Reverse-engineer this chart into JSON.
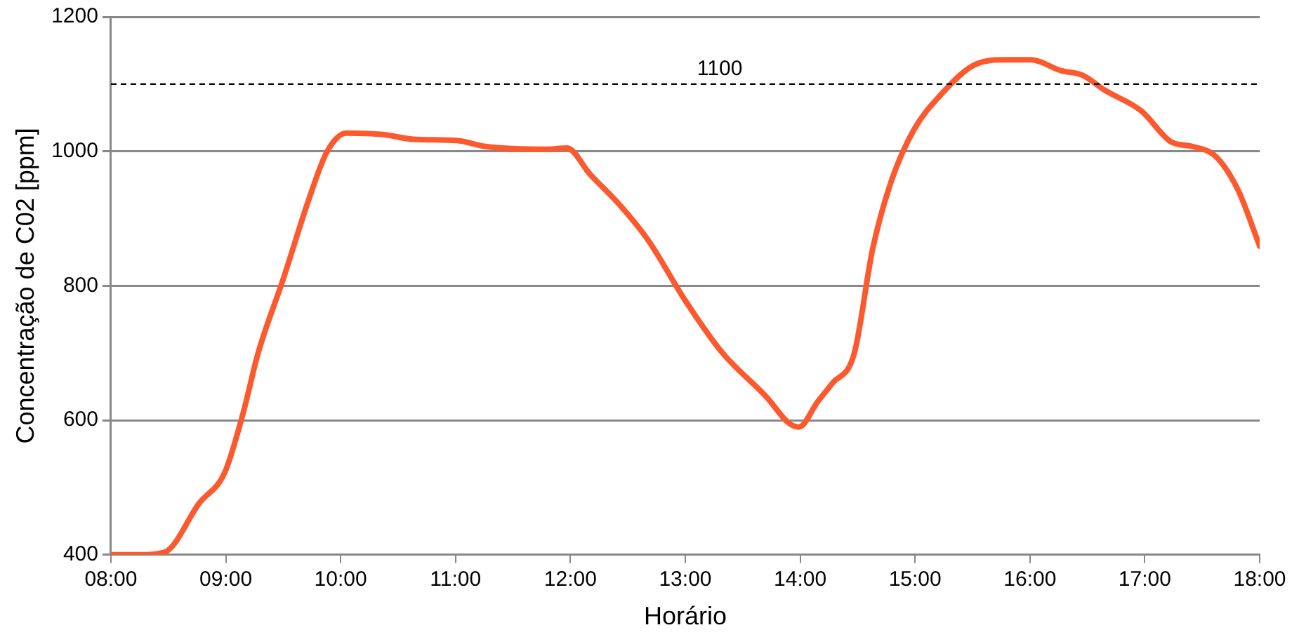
{
  "chart_data": {
    "type": "line",
    "xlabel": "Horário",
    "ylabel": "Concentração de C02 [ppm]",
    "x": [
      8.0,
      8.26,
      8.47,
      8.77,
      8.99,
      9.15,
      9.28,
      9.5,
      9.73,
      9.88,
      10.05,
      10.37,
      10.63,
      11.01,
      11.27,
      11.78,
      11.97,
      12.17,
      12.42,
      12.68,
      13.0,
      13.32,
      13.71,
      13.9,
      13.99,
      14.15,
      14.28,
      14.47,
      14.63,
      14.79,
      14.99,
      15.24,
      15.5,
      15.76,
      16.01,
      16.27,
      16.46,
      16.65,
      16.97,
      17.23,
      17.42,
      17.62,
      17.81,
      18.0
    ],
    "series": [
      {
        "color": "#fc5a2e",
        "values": [
          400,
          400,
          404,
          477,
          522,
          610,
          699,
          810,
          932,
          999,
          1027,
          1025,
          1018,
          1016,
          1007,
          1003,
          1005,
          966,
          922,
          867,
          778,
          701,
          634,
          596,
          590,
          627,
          655,
          699,
          854,
          954,
          1032,
          1087,
          1127,
          1136,
          1136,
          1120,
          1113,
          1091,
          1060,
          1014,
          1007,
          992,
          943,
          859
        ]
      }
    ],
    "xlim": [
      8,
      18
    ],
    "xticks": [
      {
        "value": 8,
        "label": "08:00"
      },
      {
        "value": 9,
        "label": "09:00"
      },
      {
        "value": 10,
        "label": "10:00"
      },
      {
        "value": 11,
        "label": "11:00"
      },
      {
        "value": 12,
        "label": "12:00"
      },
      {
        "value": 13,
        "label": "13:00"
      },
      {
        "value": 14,
        "label": "14:00"
      },
      {
        "value": 15,
        "label": "15:00"
      },
      {
        "value": 16,
        "label": "16:00"
      },
      {
        "value": 17,
        "label": "17:00"
      },
      {
        "value": 18,
        "label": "18:00"
      }
    ],
    "ylim": [
      400,
      1200
    ],
    "yticks": [
      400,
      600,
      800,
      1000,
      1200
    ],
    "grid": "y",
    "legend": false,
    "marker": "none",
    "line_style": "solid",
    "ref_lines": [
      {
        "axis": "y",
        "value": 1100,
        "label": "1100",
        "color": "#000000",
        "line_style": "dashed"
      }
    ]
  }
}
